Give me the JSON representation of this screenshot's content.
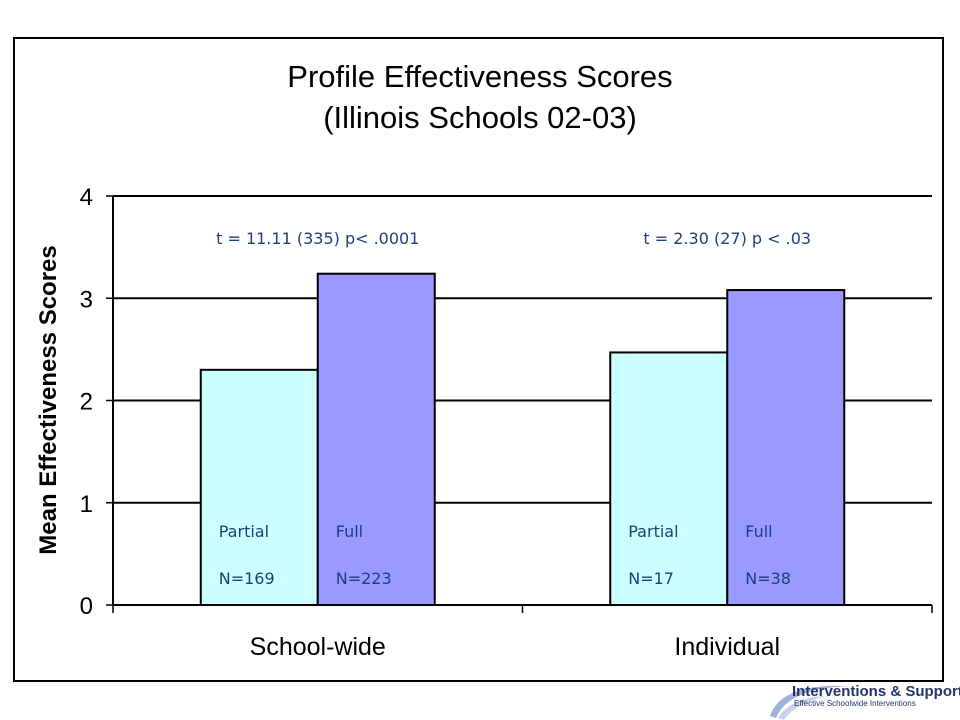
{
  "chart_data": {
    "type": "bar",
    "title": "Profile Effectiveness Scores",
    "subtitle": "(Illinois Schools 02-03)",
    "ylabel": "Mean Effectiveness Scores",
    "xlabel": "",
    "ylim": [
      0,
      4
    ],
    "yticks": [
      "0",
      "1",
      "2",
      "3",
      "4"
    ],
    "grid": true,
    "categories": [
      "School-wide",
      "Individual"
    ],
    "series": [
      {
        "name": "Partial",
        "color": "#ccffff",
        "values": [
          2.3,
          2.47
        ],
        "n_labels": [
          "N=169",
          "N=17"
        ]
      },
      {
        "name": "Full",
        "color": "#9999ff",
        "values": [
          3.24,
          3.08
        ],
        "n_labels": [
          "N=223",
          "N=38"
        ]
      }
    ],
    "annotations": [
      "t = 11.11 (335)  p< .0001",
      "t = 2.30 (27)  p < .03"
    ]
  },
  "logo": {
    "name": "Interventions & Supports",
    "tagline": "Effective Schoolwide Interventions"
  }
}
